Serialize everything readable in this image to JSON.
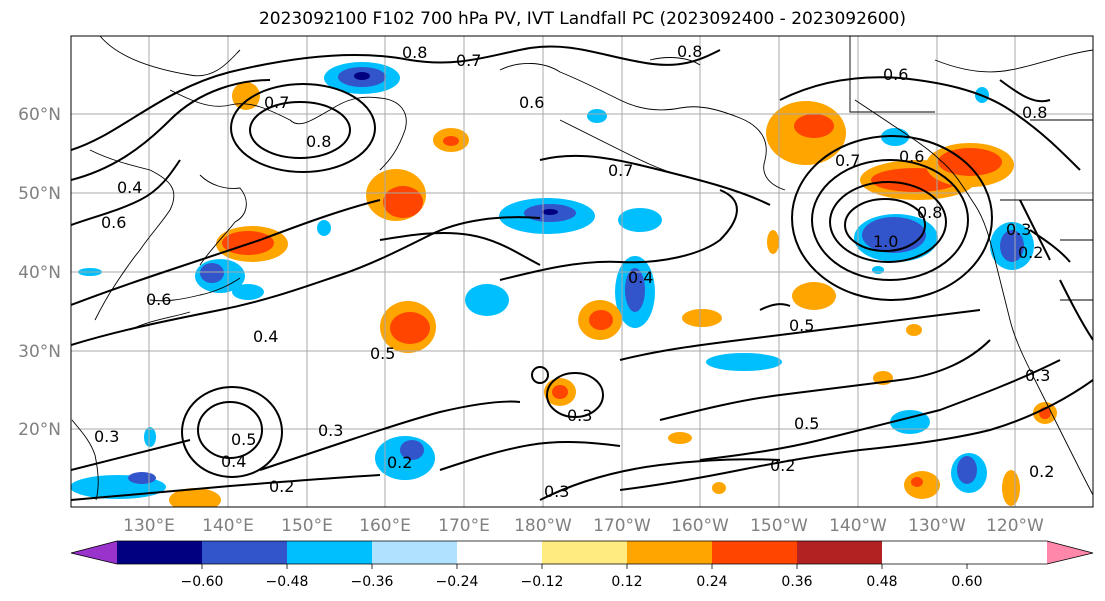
{
  "title": "2023092100 F102 700 hPa PV, IVT Landfall PC (2023092400 - 2023092600)",
  "lat_labels": [
    "60°N",
    "50°N",
    "40°N",
    "30°N",
    "20°N"
  ],
  "lon_labels": [
    "130°E",
    "140°E",
    "150°E",
    "160°E",
    "170°E",
    "180°W",
    "170°W",
    "160°W",
    "150°W",
    "140°W",
    "130°W",
    "120°W"
  ],
  "colorbar": {
    "colors": [
      "#9933cc",
      "#000080",
      "#3355cc",
      "#00bfff",
      "#b0e2ff",
      "#ffffff",
      "#ffeb80",
      "#ffa500",
      "#ff4500",
      "#b22222",
      "#ff88aa"
    ],
    "tick_labels": [
      "−0.60",
      "−0.48",
      "−0.36",
      "−0.24",
      "−0.12",
      "0.12",
      "0.24",
      "0.36",
      "0.48",
      "0.60"
    ]
  },
  "contour_labels": [
    "0.8",
    "0.7",
    "0.8",
    "0.7",
    "0.6",
    "0.8",
    "0.6",
    "0.7",
    "0.6",
    "0.6",
    "0.7",
    "0.8",
    "0.6",
    "0.8",
    "1.0",
    "0.3",
    "0.4",
    "0.4",
    "0.5",
    "0.5",
    "0.5",
    "0.3",
    "0.3",
    "0.2",
    "0.2",
    "0.3",
    "0.5",
    "0.4",
    "0.3",
    "0.2",
    "0.2",
    "0.3",
    "0.2",
    "0.4"
  ]
}
